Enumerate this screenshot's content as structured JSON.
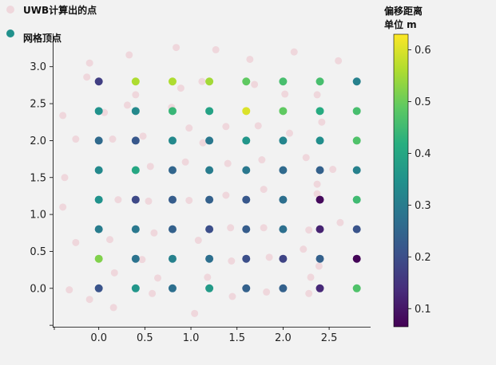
{
  "chart_data": {
    "type": "scatter",
    "legend": {
      "placement": "top-left",
      "items": [
        "UWB计算出的点",
        "网格顶点"
      ]
    },
    "colorbar": {
      "title_line1": "偏移距离",
      "title_line2": "单位 m",
      "range": [
        0.065,
        0.63
      ],
      "ticks": [
        "0.1",
        "0.2",
        "0.3",
        "0.4",
        "0.5",
        "0.6"
      ],
      "colormap": "viridis"
    },
    "xlim": [
      -0.5,
      2.95
    ],
    "ylim": [
      -0.52,
      3.45
    ],
    "x_ticks": [
      "0.0",
      "0.5",
      "1.0",
      "1.5",
      "2.0",
      "2.5"
    ],
    "y_ticks": [
      "0.0",
      "0.5",
      "1.0",
      "1.5",
      "2.0",
      "2.5",
      "3.0"
    ],
    "grid": false,
    "series": [
      {
        "role": "uwb",
        "color": "#efd7dc",
        "points": [
          [
            -0.1,
            3.05
          ],
          [
            0.33,
            3.16
          ],
          [
            0.84,
            3.26
          ],
          [
            1.27,
            3.23
          ],
          [
            1.64,
            3.1
          ],
          [
            2.12,
            3.2
          ],
          [
            2.6,
            3.08
          ],
          [
            -0.13,
            2.86
          ],
          [
            0.4,
            2.62
          ],
          [
            0.89,
            2.71
          ],
          [
            1.12,
            2.8
          ],
          [
            1.69,
            2.76
          ],
          [
            2.02,
            2.63
          ],
          [
            2.37,
            2.62
          ],
          [
            -0.39,
            2.34
          ],
          [
            0.06,
            2.38
          ],
          [
            0.31,
            2.48
          ],
          [
            0.79,
            2.45
          ],
          [
            0.98,
            2.17
          ],
          [
            1.38,
            2.19
          ],
          [
            1.73,
            2.2
          ],
          [
            2.07,
            2.1
          ],
          [
            2.42,
            2.25
          ],
          [
            -0.25,
            2.02
          ],
          [
            0.15,
            2.02
          ],
          [
            0.48,
            2.06
          ],
          [
            1.13,
            1.97
          ],
          [
            1.77,
            1.74
          ],
          [
            2.25,
            1.77
          ],
          [
            -0.37,
            1.5
          ],
          [
            0.56,
            1.65
          ],
          [
            0.94,
            1.71
          ],
          [
            1.4,
            1.69
          ],
          [
            2.37,
            1.41
          ],
          [
            2.54,
            1.61
          ],
          [
            -0.39,
            1.1
          ],
          [
            0.21,
            1.2
          ],
          [
            0.54,
            1.18
          ],
          [
            0.98,
            1.19
          ],
          [
            1.38,
            1.26
          ],
          [
            1.79,
            1.34
          ],
          [
            2.37,
            1.28
          ],
          [
            -0.25,
            0.62
          ],
          [
            0.12,
            0.66
          ],
          [
            0.6,
            0.75
          ],
          [
            1.08,
            0.65
          ],
          [
            1.43,
            0.82
          ],
          [
            1.79,
            0.82
          ],
          [
            2.28,
            0.79
          ],
          [
            2.62,
            0.89
          ],
          [
            0.17,
            0.21
          ],
          [
            0.47,
            0.39
          ],
          [
            1.44,
            0.37
          ],
          [
            1.85,
            0.42
          ],
          [
            2.22,
            0.53
          ],
          [
            2.39,
            0.3
          ],
          [
            -0.32,
            -0.02
          ],
          [
            0.64,
            0.14
          ],
          [
            1.18,
            0.15
          ],
          [
            2.3,
            0.15
          ],
          [
            -0.1,
            -0.15
          ],
          [
            0.16,
            -0.26
          ],
          [
            0.58,
            -0.07
          ],
          [
            1.45,
            -0.11
          ],
          [
            1.82,
            -0.05
          ],
          [
            2.28,
            -0.07
          ],
          [
            1.04,
            -0.34
          ]
        ]
      },
      {
        "role": "grid",
        "points": [
          [
            0.0,
            2.8,
            0.17
          ],
          [
            0.4,
            2.8,
            0.56
          ],
          [
            0.8,
            2.8,
            0.56
          ],
          [
            1.2,
            2.8,
            0.55
          ],
          [
            1.6,
            2.8,
            0.49
          ],
          [
            2.0,
            2.8,
            0.46
          ],
          [
            2.4,
            2.8,
            0.46
          ],
          [
            2.8,
            2.8,
            0.31
          ],
          [
            0.0,
            2.4,
            0.35
          ],
          [
            0.4,
            2.4,
            0.33
          ],
          [
            0.8,
            2.4,
            0.44
          ],
          [
            1.2,
            2.4,
            0.39
          ],
          [
            1.6,
            2.4,
            0.6
          ],
          [
            2.0,
            2.4,
            0.49
          ],
          [
            2.4,
            2.4,
            0.41
          ],
          [
            2.8,
            2.4,
            0.46
          ],
          [
            0.0,
            2.0,
            0.26
          ],
          [
            0.4,
            2.0,
            0.22
          ],
          [
            0.8,
            2.0,
            0.33
          ],
          [
            1.2,
            2.0,
            0.29
          ],
          [
            1.6,
            2.0,
            0.36
          ],
          [
            2.0,
            2.0,
            0.32
          ],
          [
            2.4,
            2.0,
            0.34
          ],
          [
            2.8,
            2.0,
            0.47
          ],
          [
            0.0,
            1.6,
            0.33
          ],
          [
            0.4,
            1.6,
            0.4
          ],
          [
            0.8,
            1.6,
            0.25
          ],
          [
            1.2,
            1.6,
            0.3
          ],
          [
            1.6,
            1.6,
            0.29
          ],
          [
            2.0,
            1.6,
            0.26
          ],
          [
            2.4,
            1.6,
            0.24
          ],
          [
            2.8,
            1.6,
            0.31
          ],
          [
            0.0,
            1.2,
            0.35
          ],
          [
            0.4,
            1.2,
            0.19
          ],
          [
            0.8,
            1.2,
            0.23
          ],
          [
            1.2,
            1.2,
            0.24
          ],
          [
            1.6,
            1.2,
            0.22
          ],
          [
            2.0,
            1.2,
            0.27
          ],
          [
            2.4,
            1.2,
            0.08
          ],
          [
            2.8,
            1.2,
            0.45
          ],
          [
            0.0,
            0.8,
            0.3
          ],
          [
            0.4,
            0.8,
            0.29
          ],
          [
            0.8,
            0.8,
            0.24
          ],
          [
            1.2,
            0.8,
            0.2
          ],
          [
            1.6,
            0.8,
            0.23
          ],
          [
            2.0,
            0.8,
            0.27
          ],
          [
            2.4,
            0.8,
            0.12
          ],
          [
            2.8,
            0.8,
            0.21
          ],
          [
            0.0,
            0.4,
            0.52
          ],
          [
            0.4,
            0.4,
            0.28
          ],
          [
            0.8,
            0.4,
            0.31
          ],
          [
            1.2,
            0.4,
            0.27
          ],
          [
            1.6,
            0.4,
            0.2
          ],
          [
            2.0,
            0.4,
            0.18
          ],
          [
            2.4,
            0.4,
            0.24
          ],
          [
            2.8,
            0.4,
            0.07
          ],
          [
            0.0,
            0.0,
            0.21
          ],
          [
            0.4,
            0.0,
            0.36
          ],
          [
            0.8,
            0.0,
            0.27
          ],
          [
            1.2,
            0.0,
            0.37
          ],
          [
            1.6,
            0.0,
            0.24
          ],
          [
            2.0,
            0.0,
            0.24
          ],
          [
            2.4,
            0.0,
            0.13
          ],
          [
            2.8,
            0.0,
            0.47
          ]
        ]
      }
    ]
  }
}
